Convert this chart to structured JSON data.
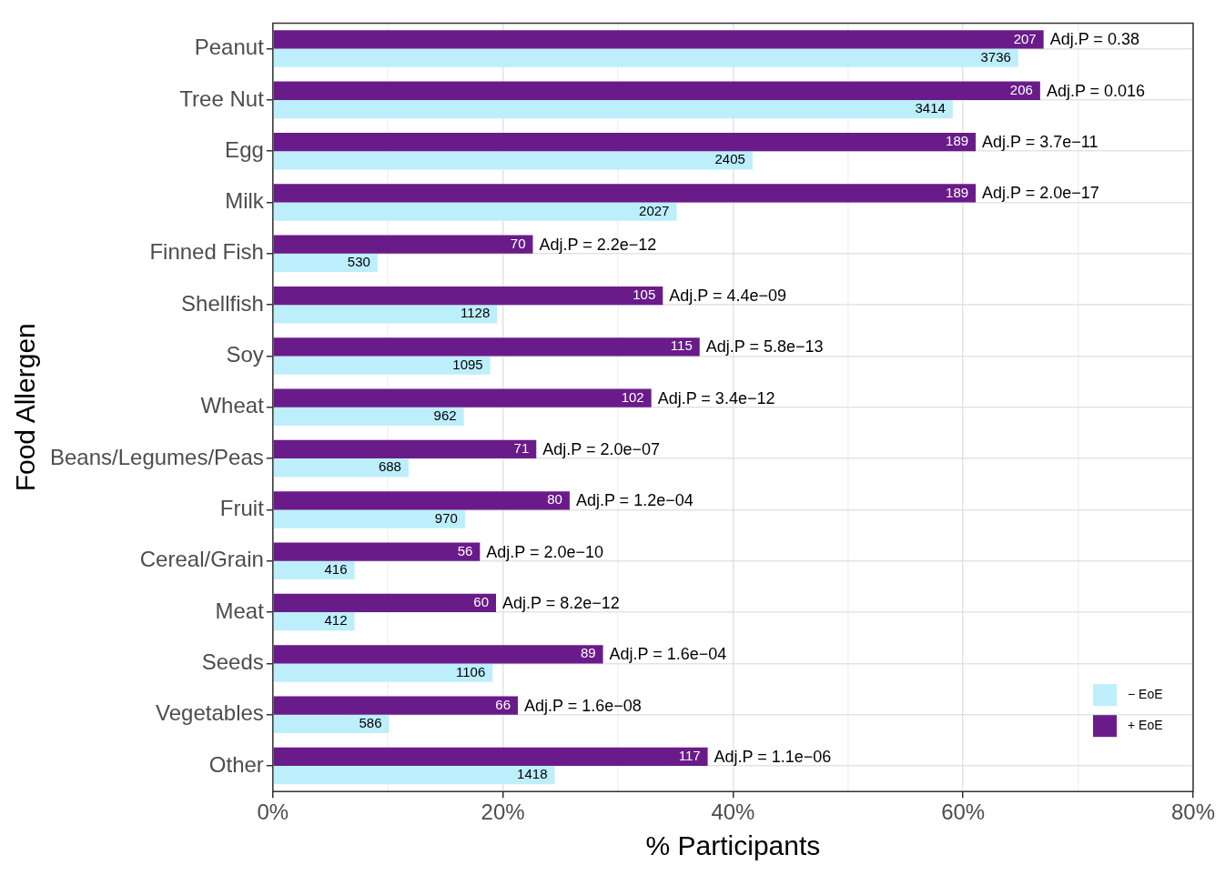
{
  "chart_data": {
    "type": "bar",
    "orientation": "horizontal",
    "xlabel": "% Participants",
    "ylabel": "Food Allergen",
    "categories": [
      "Peanut",
      "Tree Nut",
      "Egg",
      "Milk",
      "Finned Fish",
      "Shellfish",
      "Soy",
      "Wheat",
      "Beans/Legumes/Peas",
      "Fruit",
      "Cereal/Grain",
      "Meat",
      "Seeds",
      "Vegetables",
      "Other"
    ],
    "series": [
      {
        "name": "+ EoE",
        "color": "#6a1b8a",
        "values": [
          67.0,
          66.7,
          61.1,
          61.1,
          22.6,
          33.9,
          37.1,
          32.9,
          22.9,
          25.8,
          18.0,
          19.4,
          28.7,
          21.3,
          37.8
        ]
      },
      {
        "name": "− EoE",
        "color": "#bdeefc",
        "values": [
          64.8,
          59.1,
          41.7,
          35.1,
          9.1,
          19.5,
          18.9,
          16.6,
          11.8,
          16.7,
          7.1,
          7.1,
          19.1,
          10.1,
          24.5
        ]
      }
    ],
    "xlim": [
      0,
      80
    ],
    "xticks": [
      {
        "value": 0,
        "label": "0%"
      },
      {
        "value": 10,
        "label": null
      },
      {
        "value": 20,
        "label": "20%"
      },
      {
        "value": 30,
        "label": null
      },
      {
        "value": 40,
        "label": "40%"
      },
      {
        "value": 50,
        "label": null
      },
      {
        "value": 60,
        "label": "60%"
      },
      {
        "value": 70,
        "label": null
      },
      {
        "value": 80,
        "label": "80%"
      }
    ],
    "grid": true,
    "legend": "bottom right",
    "annotations": [
      {
        "text": "207",
        "x": 67.0,
        "y": "Peanut"
      },
      {
        "text": "Adj.P = 0.38",
        "x": 67.0,
        "y": "Peanut"
      },
      {
        "text": "3736",
        "x": 64.8,
        "y": "Peanut"
      },
      {
        "text": "206",
        "x": 66.7,
        "y": "Tree Nut"
      },
      {
        "text": "Adj.P = 0.016",
        "x": 66.7,
        "y": "Tree Nut"
      },
      {
        "text": "3414",
        "x": 59.1,
        "y": "Tree Nut"
      },
      {
        "text": "189",
        "x": 61.1,
        "y": "Egg"
      },
      {
        "text": "Adj.P = 3.7e−11",
        "x": 61.1,
        "y": "Egg"
      },
      {
        "text": "2405",
        "x": 41.7,
        "y": "Egg"
      },
      {
        "text": "189",
        "x": 61.1,
        "y": "Milk"
      },
      {
        "text": "Adj.P = 2.0e−17",
        "x": 61.1,
        "y": "Milk"
      },
      {
        "text": "2027",
        "x": 35.1,
        "y": "Milk"
      },
      {
        "text": "70",
        "x": 22.6,
        "y": "Finned Fish"
      },
      {
        "text": "Adj.P = 2.2e−12",
        "x": 22.6,
        "y": "Finned Fish"
      },
      {
        "text": "530",
        "x": 9.1,
        "y": "Finned Fish"
      },
      {
        "text": "105",
        "x": 33.9,
        "y": "Shellfish"
      },
      {
        "text": "Adj.P = 4.4e−09",
        "x": 33.9,
        "y": "Shellfish"
      },
      {
        "text": "1128",
        "x": 19.5,
        "y": "Shellfish"
      },
      {
        "text": "115",
        "x": 37.1,
        "y": "Soy"
      },
      {
        "text": "Adj.P = 5.8e−13",
        "x": 37.1,
        "y": "Soy"
      },
      {
        "text": "1095",
        "x": 18.9,
        "y": "Soy"
      },
      {
        "text": "102",
        "x": 32.9,
        "y": "Wheat"
      },
      {
        "text": "Adj.P = 3.4e−12",
        "x": 32.9,
        "y": "Wheat"
      },
      {
        "text": "962",
        "x": 16.6,
        "y": "Wheat"
      },
      {
        "text": "71",
        "x": 22.9,
        "y": "Beans/Legumes/Peas"
      },
      {
        "text": "Adj.P = 2.0e−07",
        "x": 22.9,
        "y": "Beans/Legumes/Peas"
      },
      {
        "text": "688",
        "x": 11.8,
        "y": "Beans/Legumes/Peas"
      },
      {
        "text": "80",
        "x": 25.8,
        "y": "Fruit"
      },
      {
        "text": "Adj.P = 1.2e−04",
        "x": 25.8,
        "y": "Fruit"
      },
      {
        "text": "970",
        "x": 16.7,
        "y": "Fruit"
      },
      {
        "text": "56",
        "x": 18.0,
        "y": "Cereal/Grain"
      },
      {
        "text": "Adj.P = 2.0e−10",
        "x": 18.0,
        "y": "Cereal/Grain"
      },
      {
        "text": "416",
        "x": 7.1,
        "y": "Cereal/Grain"
      },
      {
        "text": "60",
        "x": 19.4,
        "y": "Meat"
      },
      {
        "text": "Adj.P = 8.2e−12",
        "x": 19.4,
        "y": "Meat"
      },
      {
        "text": "412",
        "x": 7.1,
        "y": "Meat"
      },
      {
        "text": "89",
        "x": 28.7,
        "y": "Seeds"
      },
      {
        "text": "Adj.P = 1.6e−04",
        "x": 28.7,
        "y": "Seeds"
      },
      {
        "text": "1106",
        "x": 19.1,
        "y": "Seeds"
      },
      {
        "text": "66",
        "x": 21.3,
        "y": "Vegetables"
      },
      {
        "text": "Adj.P = 1.6e−08",
        "x": 21.3,
        "y": "Vegetables"
      },
      {
        "text": "586",
        "x": 10.1,
        "y": "Vegetables"
      },
      {
        "text": "117",
        "x": 37.8,
        "y": "Other"
      },
      {
        "text": "Adj.P = 1.1e−06",
        "x": 37.8,
        "y": "Other"
      },
      {
        "text": "1418",
        "x": 24.5,
        "y": "Other"
      }
    ]
  }
}
